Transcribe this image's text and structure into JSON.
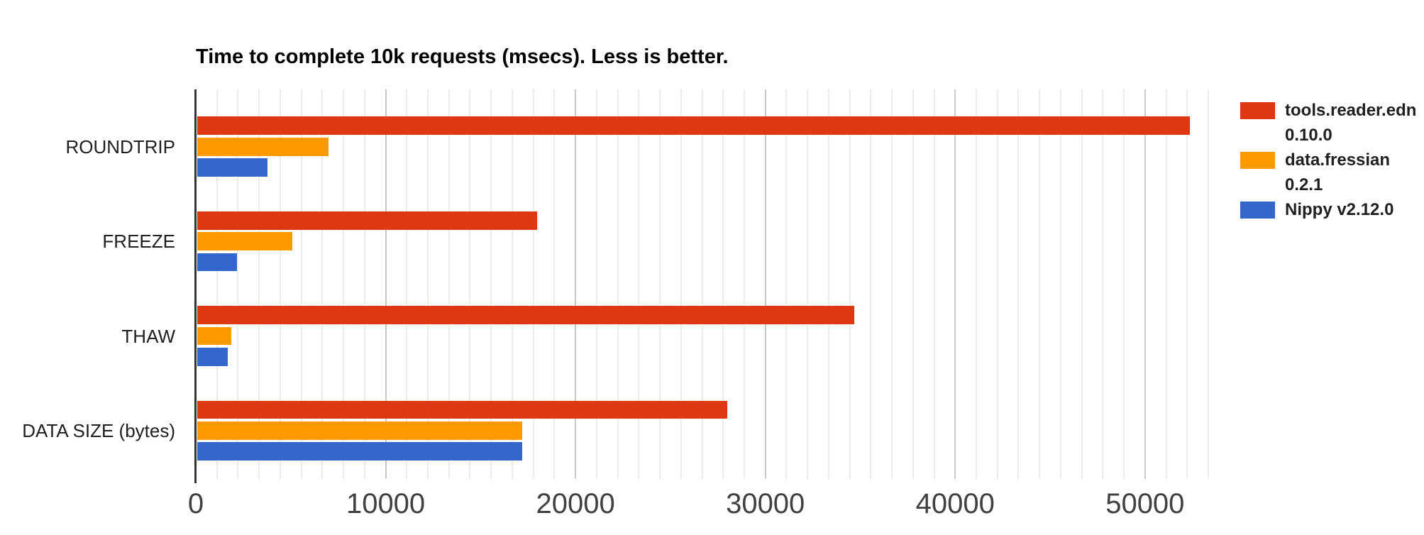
{
  "chart_data": {
    "type": "bar",
    "orientation": "horizontal",
    "title": "Time to complete 10k requests (msecs). Less is better.",
    "categories": [
      "ROUNDTRIP",
      "FREEZE",
      "THAW",
      "DATA SIZE (bytes)"
    ],
    "series": [
      {
        "name": "tools.reader.edn 0.10.0",
        "label_lines": [
          "tools.reader.edn",
          "0.10.0"
        ],
        "color": "#DC3912",
        "values": [
          52300,
          17900,
          34600,
          27900
        ]
      },
      {
        "name": "data.fressian 0.2.1",
        "label_lines": [
          "data.fressian",
          "0.2.1"
        ],
        "color": "#FF9900",
        "values": [
          6900,
          5000,
          1800,
          17100
        ]
      },
      {
        "name": "Nippy v2.12.0",
        "label_lines": [
          "Nippy v2.12.0"
        ],
        "color": "#3366CC",
        "values": [
          3700,
          2100,
          1600,
          17100
        ]
      }
    ],
    "x_axis": {
      "ticks": [
        0,
        10000,
        20000,
        30000,
        40000,
        50000
      ],
      "tick_labels": [
        "0",
        "10000",
        "20000",
        "30000",
        "40000",
        "50000"
      ],
      "max": 53333,
      "minor_per_major": 9
    },
    "legend_position": "right",
    "grid": true,
    "colors": {
      "axis_line": "#333333",
      "minor_gridline": "#ececec",
      "major_gridline": "#c9c9c9",
      "tick_label": "#404040",
      "category_label": "#1f1f1f"
    }
  }
}
